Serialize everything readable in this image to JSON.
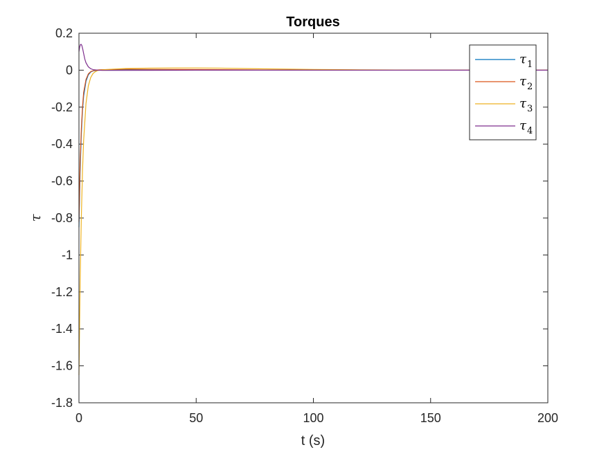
{
  "chart_data": {
    "type": "line",
    "title": "Torques",
    "xlabel": "t (s)",
    "ylabel": "τ",
    "xlim": [
      0,
      200
    ],
    "ylim": [
      -1.8,
      0.2
    ],
    "xticks": [
      0,
      50,
      100,
      150,
      200
    ],
    "xtick_labels": [
      "0",
      "50",
      "100",
      "150",
      "200"
    ],
    "yticks": [
      0.2,
      0,
      -0.2,
      -0.4,
      -0.6,
      -0.8,
      -1,
      -1.2,
      -1.4,
      -1.6,
      -1.8
    ],
    "ytick_labels": [
      "0.2",
      "0",
      "-0.2",
      "-0.4",
      "-0.6",
      "-0.8",
      "-1",
      "-1.2",
      "-1.4",
      "-1.6",
      "-1.8"
    ],
    "grid": false,
    "legend_position": "top-right",
    "series": [
      {
        "name": "τ",
        "sub": "1",
        "color": "#0072BD",
        "x": [
          0,
          0.5,
          1,
          1.5,
          2,
          3,
          4,
          5,
          6,
          8,
          10,
          20,
          40,
          60,
          80,
          100,
          150,
          200
        ],
        "y": [
          -0.85,
          -0.55,
          -0.35,
          -0.22,
          -0.14,
          -0.06,
          -0.025,
          -0.01,
          -0.004,
          0.0,
          0.002,
          0.003,
          0.002,
          0.001,
          0.0,
          0.0,
          0.0,
          0.0
        ]
      },
      {
        "name": "τ",
        "sub": "2",
        "color": "#D95319",
        "x": [
          0,
          0.5,
          1,
          1.5,
          2,
          3,
          4,
          5,
          6,
          8,
          10,
          20,
          40,
          60,
          80,
          100,
          150,
          200
        ],
        "y": [
          -0.82,
          -0.5,
          -0.32,
          -0.2,
          -0.12,
          -0.05,
          -0.02,
          -0.008,
          -0.003,
          0.001,
          0.003,
          0.005,
          0.004,
          0.003,
          0.001,
          0.0,
          0.0,
          0.0
        ]
      },
      {
        "name": "τ",
        "sub": "3",
        "color": "#EDB120",
        "x": [
          0,
          0.5,
          1,
          1.5,
          2,
          3,
          4,
          5,
          6,
          7,
          8,
          10,
          15,
          20,
          30,
          40,
          50,
          60,
          70,
          80,
          100,
          120,
          150,
          200
        ],
        "y": [
          -1.65,
          -1.15,
          -0.8,
          -0.55,
          -0.38,
          -0.18,
          -0.085,
          -0.04,
          -0.018,
          -0.008,
          -0.002,
          0.002,
          0.006,
          0.009,
          0.011,
          0.012,
          0.012,
          0.011,
          0.009,
          0.007,
          0.004,
          0.002,
          0.0,
          0.0
        ]
      },
      {
        "name": "τ",
        "sub": "4",
        "color": "#7E2F8E",
        "x": [
          0,
          0.3,
          0.6,
          0.9,
          1.2,
          1.6,
          2,
          2.5,
          3,
          4,
          5,
          6,
          8,
          10,
          20,
          50,
          100,
          150,
          200
        ],
        "y": [
          0.1,
          0.125,
          0.138,
          0.14,
          0.135,
          0.115,
          0.09,
          0.06,
          0.04,
          0.018,
          0.008,
          0.003,
          0.0,
          -0.001,
          -0.001,
          0.0,
          0.0,
          0.0,
          0.0
        ]
      }
    ]
  }
}
